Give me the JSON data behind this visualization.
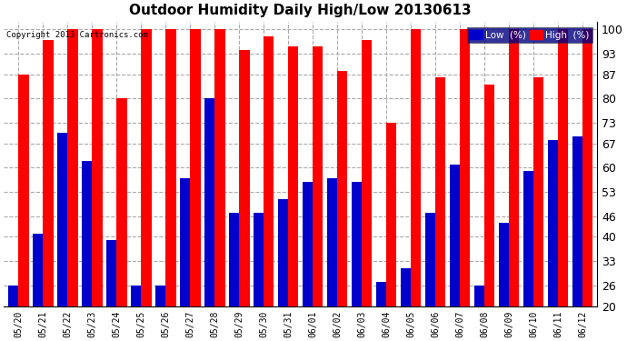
{
  "title": "Outdoor Humidity Daily High/Low 20130613",
  "copyright": "Copyright 2013 Cartronics.com",
  "background_color": "#ffffff",
  "plot_bg_color": "#ffffff",
  "grid_color": "#aaaaaa",
  "labels": [
    "05/20",
    "05/21",
    "05/22",
    "05/23",
    "05/24",
    "05/25",
    "05/26",
    "05/27",
    "05/28",
    "05/29",
    "05/30",
    "05/31",
    "06/01",
    "06/02",
    "06/03",
    "06/04",
    "06/05",
    "06/06",
    "06/07",
    "06/08",
    "06/09",
    "06/10",
    "06/11",
    "06/12"
  ],
  "high": [
    87,
    97,
    100,
    100,
    80,
    100,
    100,
    100,
    100,
    94,
    98,
    95,
    95,
    88,
    97,
    73,
    100,
    86,
    100,
    84,
    100,
    86,
    100,
    100
  ],
  "low": [
    26,
    41,
    70,
    62,
    39,
    26,
    26,
    57,
    80,
    47,
    47,
    51,
    56,
    57,
    56,
    27,
    31,
    47,
    61,
    26,
    44,
    59,
    68,
    69
  ],
  "high_color": "#ff0000",
  "low_color": "#0000cc",
  "ylim": [
    20,
    102
  ],
  "ymin": 20,
  "yticks": [
    20,
    26,
    33,
    40,
    46,
    53,
    60,
    67,
    73,
    80,
    87,
    93,
    100
  ],
  "bar_width": 0.42,
  "title_fontsize": 11,
  "tick_fontsize": 9,
  "legend_fontsize": 8
}
